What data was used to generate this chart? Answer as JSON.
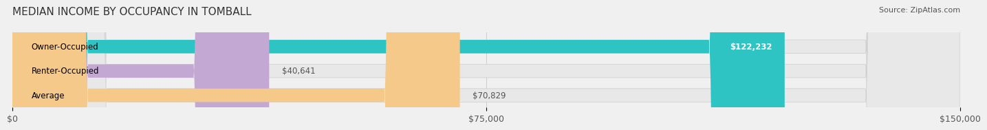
{
  "title": "MEDIAN INCOME BY OCCUPANCY IN TOMBALL",
  "source": "Source: ZipAtlas.com",
  "categories": [
    "Owner-Occupied",
    "Renter-Occupied",
    "Average"
  ],
  "values": [
    122232,
    40641,
    70829
  ],
  "bar_colors": [
    "#2ec4c4",
    "#c4a8d4",
    "#f5c98a"
  ],
  "bar_labels": [
    "$122,232",
    "$40,641",
    "$70,829"
  ],
  "xlim": [
    0,
    150000
  ],
  "xticks": [
    0,
    75000,
    150000
  ],
  "xtick_labels": [
    "$0",
    "$75,000",
    "$150,000"
  ],
  "background_color": "#f0f0f0",
  "bar_bg_color": "#e8e8e8",
  "title_fontsize": 11,
  "source_fontsize": 8,
  "label_fontsize": 8.5,
  "tick_fontsize": 9
}
